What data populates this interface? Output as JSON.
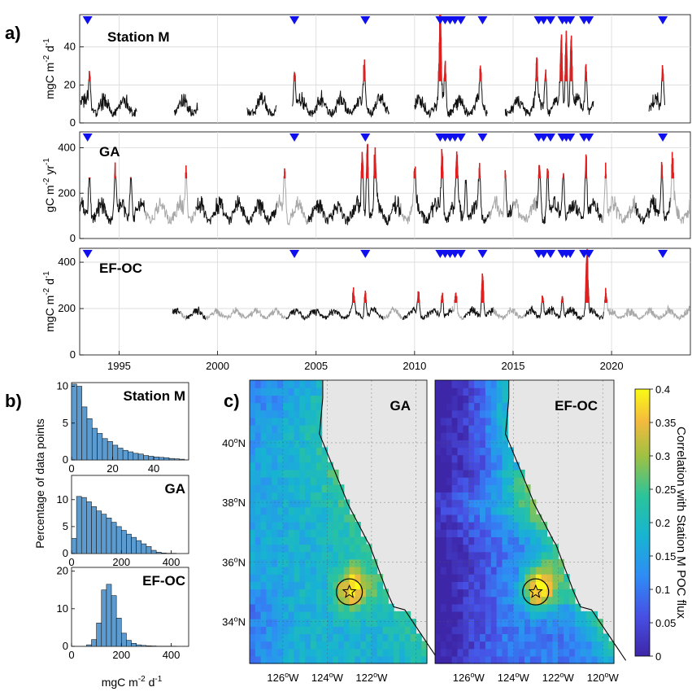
{
  "panel_labels": {
    "a": "a)",
    "b": "b)",
    "c": "c)"
  },
  "timeseries": {
    "x_ticks": [
      "1995",
      "2000",
      "2005",
      "2010",
      "2015",
      "2020"
    ],
    "xlim": [
      1993,
      2024
    ],
    "event_markers": [
      1993.4,
      2003.9,
      2007.5,
      2011.3,
      2011.55,
      2011.8,
      2012.05,
      2012.35,
      2013.45,
      2016.3,
      2016.55,
      2016.9,
      2017.5,
      2017.7,
      2017.9,
      2018.6,
      2018.85,
      2022.6
    ],
    "marker_color": "#1010ee",
    "exceed_color": "#e02020",
    "panels": [
      {
        "title": "Station M",
        "ylabel_main": "mgC m",
        "ylabel_sup1": "-2",
        "ylabel_mid": " d",
        "ylabel_sup2": "-1",
        "ylim": [
          0,
          57
        ],
        "y_ticks": [
          "0",
          "20",
          "40"
        ],
        "y_tick_values": [
          0,
          20,
          40
        ],
        "threshold": 22,
        "segments": [
          [
            1993.05,
            1995.9
          ],
          [
            1997.8,
            1999.0
          ],
          [
            2001.5,
            2003.0
          ],
          [
            2003.8,
            2008.7
          ],
          [
            2010.0,
            2013.7
          ],
          [
            2014.6,
            2019.1
          ],
          [
            2021.9,
            2022.7
          ]
        ],
        "peaks": [
          [
            1993.5,
            25
          ],
          [
            2003.9,
            27
          ],
          [
            2007.45,
            29
          ],
          [
            2011.3,
            55
          ],
          [
            2011.55,
            30
          ],
          [
            2013.35,
            25
          ],
          [
            2016.2,
            28
          ],
          [
            2016.65,
            26
          ],
          [
            2017.45,
            42
          ],
          [
            2017.7,
            49
          ],
          [
            2017.95,
            46
          ],
          [
            2018.7,
            30
          ],
          [
            2022.6,
            31
          ]
        ],
        "base": 5,
        "amp": 7
      },
      {
        "title": "GA",
        "ylabel_main": "gC m",
        "ylabel_sup1": "-2",
        "ylabel_mid": " yr",
        "ylabel_sup2": "-1",
        "ylim": [
          0,
          470
        ],
        "y_ticks": [
          "0",
          "200",
          "400"
        ],
        "y_tick_values": [
          0,
          200,
          400
        ],
        "threshold": 265,
        "segments": [
          [
            1993.0,
            2024.0
          ]
        ],
        "gray_segments": [
          [
            1996.3,
            1998.9
          ],
          [
            2003.0,
            2004.6
          ],
          [
            2009.3,
            2010.0
          ],
          [
            2013.8,
            2014.6
          ],
          [
            2015.0,
            2016.2
          ],
          [
            2019.5,
            2021.2
          ],
          [
            2023.0,
            2024.0
          ]
        ],
        "peaks": [
          [
            1993.5,
            300
          ],
          [
            1994.8,
            305
          ],
          [
            1995.6,
            300
          ],
          [
            1998.4,
            295
          ],
          [
            2003.4,
            300
          ],
          [
            2007.35,
            355
          ],
          [
            2007.6,
            440
          ],
          [
            2008.0,
            350
          ],
          [
            2010.0,
            290
          ],
          [
            2011.4,
            390
          ],
          [
            2012.15,
            325
          ],
          [
            2012.6,
            285
          ],
          [
            2013.3,
            280
          ],
          [
            2014.6,
            305
          ],
          [
            2016.35,
            325
          ],
          [
            2016.75,
            305
          ],
          [
            2017.55,
            320
          ],
          [
            2018.7,
            360
          ],
          [
            2019.7,
            310
          ],
          [
            2022.55,
            340
          ],
          [
            2023.1,
            290
          ]
        ],
        "base": 80,
        "amp": 70
      },
      {
        "title": "EF-OC",
        "ylabel_main": "mgC m",
        "ylabel_sup1": "-2",
        "ylabel_mid": " d",
        "ylabel_sup2": "-1",
        "ylim": [
          0,
          460
        ],
        "y_ticks": [
          "0",
          "200",
          "400"
        ],
        "y_tick_values": [
          0,
          200,
          400
        ],
        "threshold": 225,
        "segments": [
          [
            1997.7,
            2024.0
          ]
        ],
        "gray_segments": [
          [
            1998.1,
            1998.4
          ],
          [
            1999.4,
            2003.5
          ],
          [
            2008.4,
            2009.4
          ],
          [
            2011.9,
            2012.5
          ],
          [
            2014.0,
            2015.6
          ],
          [
            2019.6,
            2024.0
          ]
        ],
        "peaks": [
          [
            2006.9,
            260
          ],
          [
            2007.5,
            285
          ],
          [
            2010.2,
            260
          ],
          [
            2011.4,
            275
          ],
          [
            2012.1,
            255
          ],
          [
            2013.45,
            365
          ],
          [
            2016.5,
            265
          ],
          [
            2017.5,
            255
          ],
          [
            2018.75,
            445
          ],
          [
            2019.7,
            265
          ]
        ],
        "base": 160,
        "amp": 30
      }
    ]
  },
  "histograms": {
    "shared_xlabel_main": "mgC m",
    "shared_xlabel_sup1": "-2",
    "shared_xlabel_mid": " d",
    "shared_xlabel_sup2": "-1",
    "ylabel": "Percentage of data points",
    "bar_color": "#5b9bd0",
    "panels": [
      {
        "title": "Station M",
        "bin_width": 2.5,
        "xlim": [
          0,
          57
        ],
        "ylim": [
          0,
          10.5
        ],
        "x_ticks": [
          "0",
          "20",
          "40"
        ],
        "x_tick_values": [
          0,
          20,
          40
        ],
        "y_ticks": [
          "0",
          "5",
          "10"
        ],
        "y_tick_values": [
          0,
          5,
          10
        ],
        "values": [
          10.3,
          10.0,
          7.2,
          5.6,
          4.3,
          3.6,
          2.9,
          2.5,
          2.0,
          1.6,
          1.3,
          1.1,
          0.9,
          0.8,
          0.6,
          0.5,
          0.4,
          0.35,
          0.3,
          0.2,
          0.15,
          0.1
        ]
      },
      {
        "title": "GA",
        "bin_width": 20,
        "xlim": [
          0,
          470
        ],
        "ylim": [
          0,
          14.5
        ],
        "x_ticks": [
          "0",
          "200",
          "400"
        ],
        "x_tick_values": [
          0,
          200,
          400
        ],
        "y_ticks": [
          "0",
          "5",
          "10"
        ],
        "y_tick_values": [
          0,
          5,
          10
        ],
        "values": [
          2.8,
          10.6,
          10.4,
          9.6,
          8.7,
          7.9,
          7.3,
          6.6,
          5.8,
          5.0,
          4.3,
          3.6,
          3.0,
          2.4,
          1.8,
          1.3,
          0.6,
          0.25,
          0.1,
          0.05,
          0.05
        ]
      },
      {
        "title": "EF-OC",
        "bin_width": 20,
        "xlim": [
          0,
          470
        ],
        "ylim": [
          0,
          21
        ],
        "x_ticks": [
          "0",
          "200",
          "400"
        ],
        "x_tick_values": [
          0,
          200,
          400
        ],
        "y_ticks": [
          "0",
          "10",
          "20"
        ],
        "y_tick_values": [
          0,
          10,
          20
        ],
        "values": [
          0,
          0,
          0,
          0.4,
          1.8,
          6.2,
          15.0,
          16.5,
          13.5,
          7.5,
          3.5,
          1.6,
          0.8,
          0.4,
          0.25,
          0.15,
          0.1,
          0.05,
          0.05,
          0.05,
          0.05
        ]
      }
    ]
  },
  "maps": {
    "panels": [
      {
        "title": "GA"
      },
      {
        "title": "EF-OC"
      }
    ],
    "lat_ticks": [
      {
        "main": "40",
        "sup": "o",
        "suf": "N",
        "value": 40
      },
      {
        "main": "38",
        "sup": "o",
        "suf": "N",
        "value": 38
      },
      {
        "main": "36",
        "sup": "o",
        "suf": "N",
        "value": 36
      },
      {
        "main": "34",
        "sup": "o",
        "suf": "N",
        "value": 34
      }
    ],
    "lon_ticks_left": [
      {
        "main": "126",
        "sup": "o",
        "suf": "W",
        "value": -126
      },
      {
        "main": "124",
        "sup": "o",
        "suf": "W",
        "value": -124
      },
      {
        "main": "122",
        "sup": "o",
        "suf": "W",
        "value": -122
      }
    ],
    "lon_ticks_right": [
      {
        "main": "126",
        "sup": "o",
        "suf": "W",
        "value": -126
      },
      {
        "main": "124",
        "sup": "o",
        "suf": "W",
        "value": -124
      },
      {
        "main": "122",
        "sup": "o",
        "suf": "W",
        "value": -122
      },
      {
        "main": "120",
        "sup": "o",
        "suf": "W",
        "value": -120
      }
    ],
    "lon_range": [
      -127.5,
      -119.5
    ],
    "lat_range": [
      32.6,
      42.1
    ],
    "station": {
      "lon": -123.0,
      "lat": 35.0
    },
    "land_color": "#e6e6e6",
    "colorbar": {
      "label": "Correlation with Station M POC flux",
      "range": [
        0,
        0.4
      ],
      "ticks": [
        "0",
        "0.05",
        "0.1",
        "0.15",
        "0.2",
        "0.25",
        "0.3",
        "0.35",
        "0.4"
      ],
      "tick_values": [
        0,
        0.05,
        0.1,
        0.15,
        0.2,
        0.25,
        0.3,
        0.35,
        0.4
      ]
    }
  }
}
